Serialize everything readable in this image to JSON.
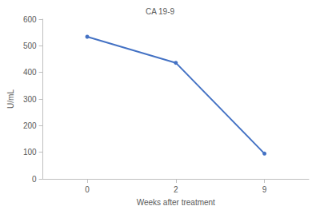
{
  "chart_data": {
    "type": "line",
    "title": "CA 19-9",
    "x_label": "Weeks after treatment",
    "y_label": "U/mL",
    "categories": [
      "0",
      "2",
      "9"
    ],
    "values": [
      534,
      436,
      95
    ],
    "color": "#4472c4",
    "marker": "circle",
    "ylim": [
      0,
      600
    ],
    "yticks": [
      0,
      100,
      200,
      300,
      400,
      500,
      600
    ],
    "grid": false
  }
}
